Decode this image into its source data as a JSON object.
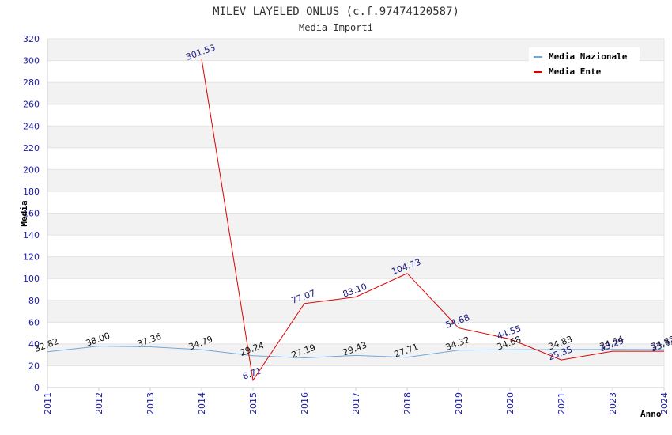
{
  "chart_data": {
    "type": "line",
    "title": "MILEV LAYELED ONLUS (c.f.97474120587)",
    "subtitle": "Media Importi",
    "ylabel": "Media",
    "xlabel": "Anno",
    "ylim": [
      0,
      320
    ],
    "yticks": [
      0,
      20,
      40,
      60,
      80,
      100,
      120,
      140,
      160,
      180,
      200,
      220,
      240,
      260,
      280,
      300,
      320
    ],
    "categories": [
      "2011",
      "2012",
      "2013",
      "2014",
      "2015",
      "2016",
      "2017",
      "2018",
      "2019",
      "2020",
      "2021",
      "2023",
      "2024"
    ],
    "legend_position": "top-right",
    "series": [
      {
        "name": "Media Nazionale",
        "color": "#6fa8dc",
        "values": [
          32.82,
          38.0,
          37.36,
          34.79,
          29.24,
          27.19,
          29.43,
          27.71,
          34.32,
          34.68,
          34.83,
          34.94,
          34.82
        ],
        "labels": [
          "32.82",
          "38.00",
          "37.36",
          "34.79",
          "29.24",
          "27.19",
          "29.43",
          "27.71",
          "34.32",
          "34.68",
          "34.83",
          "34.94",
          "34.82"
        ]
      },
      {
        "name": "Media Ente",
        "color": "#dd0000",
        "values": [
          null,
          null,
          null,
          301.53,
          6.71,
          77.07,
          83.1,
          104.73,
          54.68,
          44.55,
          25.35,
          33.29,
          33.33
        ],
        "labels": [
          null,
          null,
          null,
          "301.53",
          "6.71",
          "77.07",
          "83.10",
          "104.73",
          "54.68",
          "44.55",
          "25.35",
          "33.29",
          "33.33"
        ]
      }
    ],
    "grid": true
  }
}
